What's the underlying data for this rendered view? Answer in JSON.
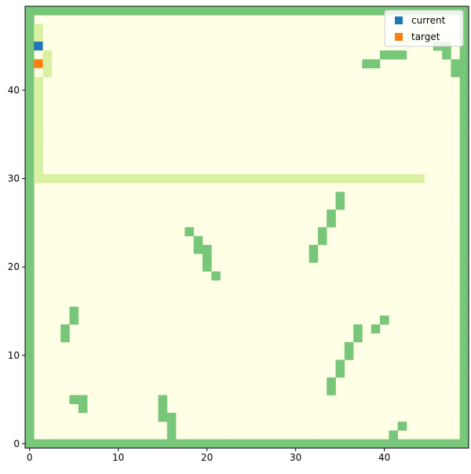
{
  "chart_data": {
    "type": "heatmap",
    "grid_size": [
      50,
      50
    ],
    "xlim": [
      -0.5,
      49.5
    ],
    "ylim": [
      -0.5,
      49.5
    ],
    "x_ticks": [
      0,
      10,
      20,
      30,
      40
    ],
    "y_ticks": [
      0,
      10,
      20,
      30,
      40
    ],
    "colors": {
      "free": "#ffffe5",
      "explored": "#d9f0a3",
      "wall": "#78c679",
      "current": "#1f77b4",
      "target": "#ff7f0e",
      "axis": "#000000"
    },
    "walls": [
      [
        18,
        24
      ],
      [
        19,
        23
      ],
      [
        19,
        22
      ],
      [
        20,
        22
      ],
      [
        20,
        21
      ],
      [
        20,
        20
      ],
      [
        21,
        19
      ],
      [
        32,
        22
      ],
      [
        32,
        21
      ],
      [
        33,
        24
      ],
      [
        33,
        23
      ],
      [
        34,
        26
      ],
      [
        34,
        25
      ],
      [
        35,
        28
      ],
      [
        35,
        27
      ],
      [
        5,
        15
      ],
      [
        5,
        14
      ],
      [
        4,
        13
      ],
      [
        4,
        12
      ],
      [
        5,
        5
      ],
      [
        6,
        5
      ],
      [
        6,
        4
      ],
      [
        15,
        5
      ],
      [
        15,
        4
      ],
      [
        15,
        3
      ],
      [
        16,
        3
      ],
      [
        16,
        2
      ],
      [
        16,
        1
      ],
      [
        34,
        7
      ],
      [
        34,
        6
      ],
      [
        35,
        9
      ],
      [
        35,
        8
      ],
      [
        36,
        11
      ],
      [
        36,
        10
      ],
      [
        37,
        13
      ],
      [
        37,
        12
      ],
      [
        39,
        13
      ],
      [
        40,
        14
      ],
      [
        41,
        1
      ],
      [
        42,
        2
      ],
      [
        38,
        43
      ],
      [
        39,
        43
      ],
      [
        40,
        44
      ],
      [
        41,
        44
      ],
      [
        42,
        44
      ],
      [
        46,
        45
      ],
      [
        47,
        45
      ],
      [
        47,
        44
      ],
      [
        48,
        43
      ],
      [
        48,
        42
      ]
    ],
    "explored": [
      [
        1,
        47
      ],
      [
        1,
        46
      ],
      [
        2,
        44
      ],
      [
        2,
        43
      ],
      [
        2,
        42
      ],
      [
        1,
        41
      ],
      [
        1,
        40
      ],
      [
        1,
        39
      ],
      [
        1,
        38
      ],
      [
        1,
        37
      ],
      [
        1,
        36
      ],
      [
        1,
        35
      ],
      [
        1,
        34
      ],
      [
        1,
        33
      ],
      [
        1,
        32
      ],
      [
        1,
        31
      ]
    ],
    "explored_row": {
      "y": 30,
      "x_from": 1,
      "x_to": 44
    },
    "faint": [
      [
        43,
        46
      ],
      [
        44,
        46
      ],
      [
        45,
        47
      ]
    ],
    "current": [
      1,
      45
    ],
    "target": [
      1,
      43
    ],
    "legend": {
      "placement": "top-right",
      "entries": [
        {
          "label": "current",
          "color": "#1f77b4"
        },
        {
          "label": "target",
          "color": "#ff7f0e"
        }
      ]
    }
  }
}
